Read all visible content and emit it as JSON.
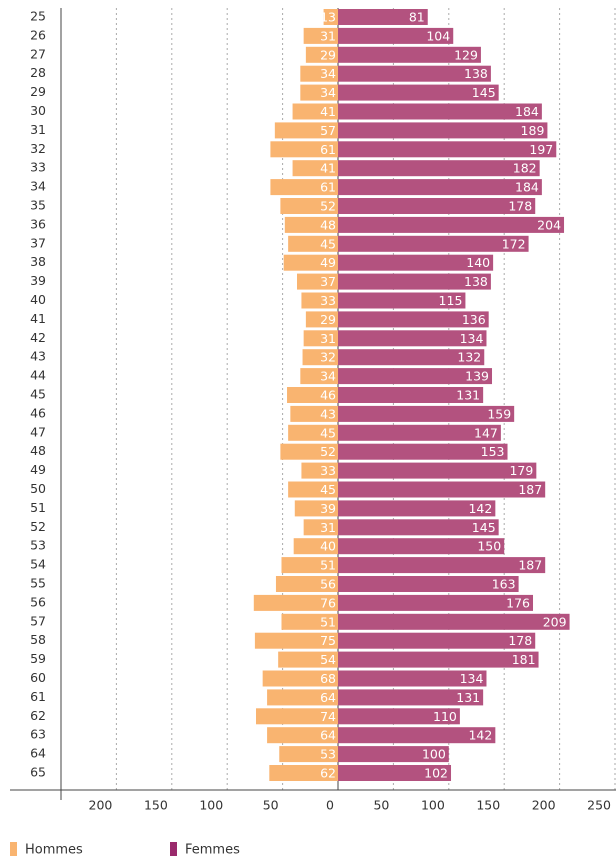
{
  "chart_data": {
    "type": "pyramid",
    "categories": [
      "25",
      "26",
      "27",
      "28",
      "29",
      "30",
      "31",
      "32",
      "33",
      "34",
      "35",
      "36",
      "37",
      "38",
      "39",
      "40",
      "41",
      "42",
      "43",
      "44",
      "45",
      "46",
      "47",
      "48",
      "49",
      "50",
      "51",
      "52",
      "53",
      "54",
      "55",
      "56",
      "57",
      "58",
      "59",
      "60",
      "61",
      "62",
      "63",
      "64",
      "65"
    ],
    "series": [
      {
        "name": "Hommes",
        "color": "#f9b470",
        "legend_color": "#f9b470",
        "side": "left",
        "values": [
          13,
          31,
          29,
          34,
          34,
          41,
          57,
          61,
          41,
          61,
          52,
          48,
          45,
          49,
          37,
          33,
          29,
          31,
          32,
          34,
          46,
          43,
          45,
          52,
          33,
          45,
          39,
          31,
          40,
          51,
          56,
          76,
          51,
          75,
          54,
          68,
          64,
          74,
          64,
          53,
          62
        ]
      },
      {
        "name": "Femmes",
        "color": "#b3527f",
        "legend_color": "#9a2a6c",
        "side": "right",
        "values": [
          81,
          104,
          129,
          138,
          145,
          184,
          189,
          197,
          182,
          184,
          178,
          204,
          172,
          140,
          138,
          115,
          136,
          134,
          132,
          139,
          131,
          159,
          147,
          153,
          179,
          187,
          142,
          145,
          150,
          187,
          163,
          176,
          209,
          178,
          181,
          134,
          131,
          110,
          142,
          100,
          102
        ]
      }
    ],
    "xlim": [
      -250,
      250
    ],
    "xticks": [
      {
        "value": -200,
        "label": "200"
      },
      {
        "value": -150,
        "label": "150"
      },
      {
        "value": -100,
        "label": "100"
      },
      {
        "value": -50,
        "label": "50"
      },
      0,
      50,
      100,
      150,
      200,
      250
    ],
    "grid": true
  }
}
